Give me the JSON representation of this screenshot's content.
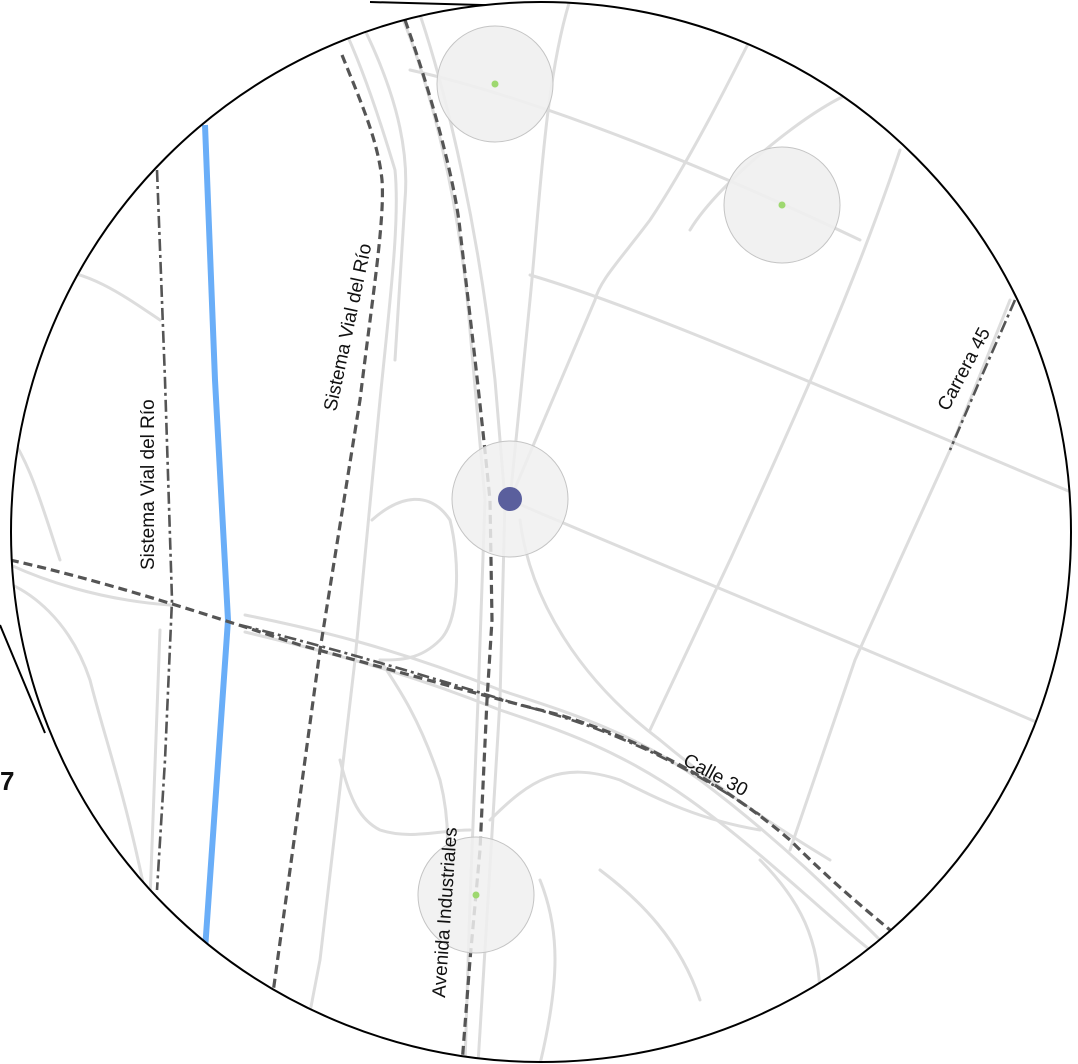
{
  "colors": {
    "background": "#ffffff",
    "road": "#dddddd",
    "route": "#555555",
    "river": "#6aaef8",
    "buffer_fill": "#f0f0f0",
    "buffer_stroke": "#c4c4c4",
    "station": "#9ed870",
    "center_point": "#5a5f9d",
    "lens_border": "#000000"
  },
  "labels": {
    "sistema_vial_west": "Sistema Vial del Río",
    "sistema_vial_east": "Sistema Vial del Río",
    "carrera_45": "Carrera 45",
    "calle_30": "Calle 30",
    "avenida_industriales": "Avenida Industriales",
    "panel_number": "7"
  },
  "features": {
    "center_point": "selected-location",
    "buffers": [
      "station-north",
      "station-northeast",
      "station-center",
      "station-south"
    ]
  }
}
